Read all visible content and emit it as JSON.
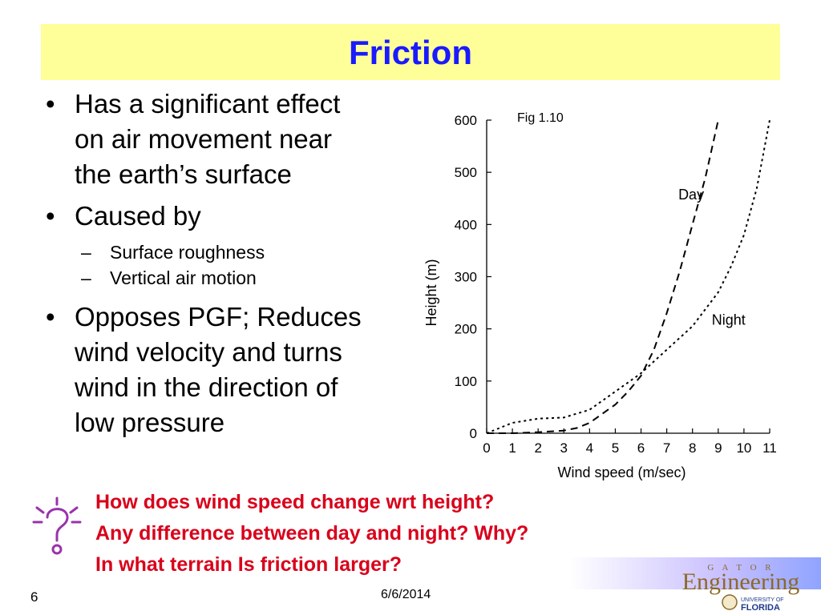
{
  "slide": {
    "title": "Friction",
    "bullets": [
      {
        "lines": [
          "Has a significant effect",
          "on air movement near",
          "the earth’s surface"
        ]
      },
      {
        "lines": [
          "Caused by"
        ],
        "sub": [
          "Surface roughness",
          "Vertical air motion"
        ]
      },
      {
        "lines": [
          "Opposes PGF; Reduces",
          "wind velocity and turns",
          "wind in the direction of",
          "low pressure"
        ]
      }
    ],
    "bullet_glyph": "•",
    "dash_glyph": "–",
    "questions": [
      "How does wind speed change wrt height?",
      "Any difference between day and night?  Why?",
      "In what terrain Is friction larger?"
    ],
    "slide_number": "6",
    "date": "6/6/2014",
    "logo": {
      "top": "G A T O R",
      "main": "Engineering",
      "sub1": "UNIVERSITY OF",
      "sub2": "FLORIDA"
    },
    "question_icon": "question-mark-icon",
    "colors": {
      "title_bg": "#ffff99",
      "title_text": "#1a1aff",
      "question_text": "#d9001a",
      "icon": "#9933aa"
    }
  },
  "chart_data": {
    "type": "line",
    "caption": "Fig 1.10",
    "xlabel": "Wind speed (m/sec)",
    "ylabel": "Height (m)",
    "xlim": [
      0,
      11
    ],
    "ylim": [
      0,
      600
    ],
    "xticks": [
      "0",
      "1",
      "2",
      "3",
      "4",
      "5",
      "6",
      "7",
      "8",
      "9",
      "10",
      "11"
    ],
    "yticks": [
      "0",
      "100",
      "200",
      "300",
      "400",
      "500",
      "600"
    ],
    "series": [
      {
        "name": "Day",
        "style": "dashed",
        "x": [
          0,
          1,
          2,
          3,
          3.5,
          4,
          5,
          5.5,
          6,
          6.5,
          7,
          7.5,
          8,
          8.5,
          9
        ],
        "y": [
          0,
          0,
          2,
          5,
          10,
          20,
          55,
          80,
          110,
          160,
          230,
          310,
          400,
          490,
          600
        ]
      },
      {
        "name": "Night",
        "style": "dotted",
        "x": [
          0,
          1,
          2,
          3,
          4,
          5,
          6,
          7,
          8,
          9,
          9.5,
          10,
          10.5,
          11
        ],
        "y": [
          0,
          20,
          28,
          30,
          45,
          80,
          115,
          160,
          205,
          270,
          320,
          380,
          470,
          600
        ]
      }
    ]
  }
}
